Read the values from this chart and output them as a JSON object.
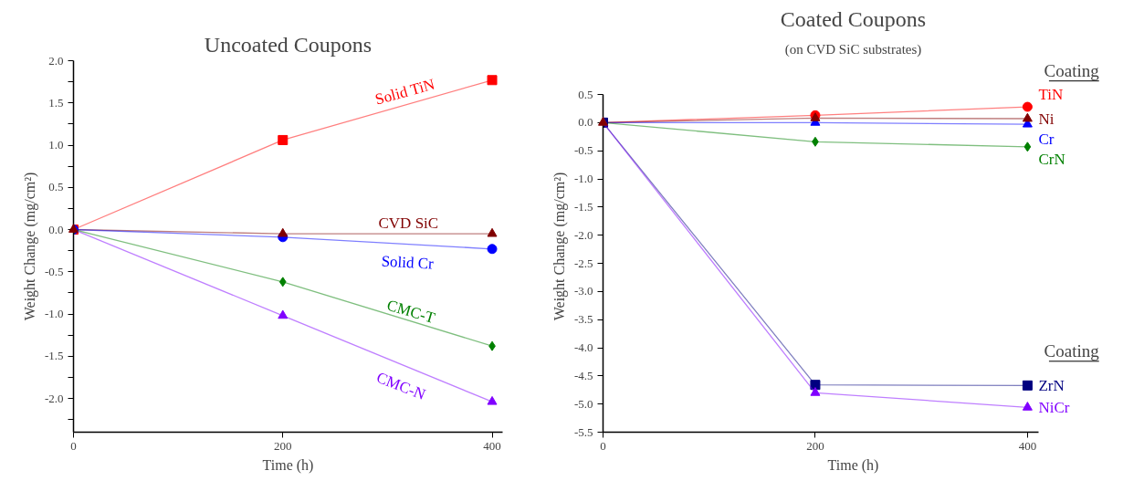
{
  "chart_data": [
    {
      "type": "line",
      "title": "Uncoated Coupons",
      "xlabel": "Time (h)",
      "ylabel": "Weight Change (mg/cm²)",
      "x": [
        0,
        200,
        400
      ],
      "xlim": [
        0,
        410
      ],
      "xticks": [
        0,
        200,
        400
      ],
      "ylim": [
        -2.4,
        2.0
      ],
      "yticks": [
        {
          "value": 2.0,
          "label": "2.0"
        },
        {
          "value": 1.75,
          "label": null
        },
        1.5,
        {
          "value": 1.25,
          "label": null
        },
        {
          "value": 1.0,
          "label": "1.0"
        },
        {
          "value": 0.75,
          "label": null
        },
        0.5,
        {
          "value": 0.25,
          "label": null
        },
        {
          "value": 0.0,
          "label": "0.0"
        },
        {
          "value": -0.25,
          "label": null
        },
        -0.5,
        {
          "value": -0.75,
          "label": null
        },
        {
          "value": -1.0,
          "label": "-1.0"
        },
        {
          "value": -1.25,
          "label": null
        },
        -1.5,
        {
          "value": -1.75,
          "label": null
        },
        {
          "value": -2.0,
          "label": "-2.0"
        },
        {
          "value": -2.25,
          "label": null
        }
      ],
      "grid": false,
      "series": [
        {
          "name": "Solid TiN",
          "color": "#ff0000",
          "marker": "square",
          "values": [
            0,
            1.06,
            1.77
          ]
        },
        {
          "name": "CVD SiC",
          "color": "#800000",
          "marker": "triangle",
          "values": [
            0,
            -0.05,
            -0.05
          ]
        },
        {
          "name": "Solid Cr",
          "color": "#0000ff",
          "marker": "circle",
          "values": [
            0,
            -0.09,
            -0.23
          ]
        },
        {
          "name": "CMC-T",
          "color": "#008000",
          "marker": "diamond",
          "values": [
            0,
            -0.62,
            -1.38
          ]
        },
        {
          "name": "CMC-N",
          "color": "#8000ff",
          "marker": "triangle",
          "values": [
            0,
            -1.02,
            -2.04
          ]
        }
      ]
    },
    {
      "type": "line",
      "title": "Coated Coupons",
      "subtitle": "(on CVD SiC substrates)",
      "xlabel": "Time (h)",
      "ylabel": "Weight Change (mg/cm²)",
      "x": [
        0,
        200,
        400
      ],
      "xlim": [
        0,
        410
      ],
      "xticks": [
        0,
        200,
        400
      ],
      "ylim": [
        -5.5,
        0.5
      ],
      "yticks": [
        0.5,
        {
          "value": 0.0,
          "label": "0.0"
        },
        -0.5,
        {
          "value": -1.0,
          "label": "-1.0"
        },
        -1.5,
        {
          "value": -2.0,
          "label": "-2.0"
        },
        -2.5,
        {
          "value": -3.0,
          "label": "-3.0"
        },
        -3.5,
        {
          "value": -4.0,
          "label": "-4.0"
        },
        -4.5,
        {
          "value": -5.0,
          "label": "-5.0"
        },
        -5.5
      ],
      "grid": false,
      "annotations": [
        "Coating",
        "Coating"
      ],
      "series": [
        {
          "name": "TiN",
          "color": "#ff0000",
          "marker": "circle",
          "values": [
            0,
            0.13,
            0.28
          ]
        },
        {
          "name": "Ni",
          "color": "#800000",
          "marker": "triangle",
          "values": [
            0,
            0.08,
            0.07
          ]
        },
        {
          "name": "Cr",
          "color": "#0000ff",
          "marker": "triangle",
          "values": [
            0,
            0.0,
            -0.03
          ]
        },
        {
          "name": "CrN",
          "color": "#008000",
          "marker": "diamond",
          "values": [
            0,
            -0.34,
            -0.43
          ]
        },
        {
          "name": "ZrN",
          "color": "#000080",
          "marker": "square",
          "values": [
            0,
            -4.66,
            -4.67
          ]
        },
        {
          "name": "NiCr",
          "color": "#8000ff",
          "marker": "triangle",
          "values": [
            0,
            -4.8,
            -5.06
          ]
        }
      ]
    }
  ]
}
